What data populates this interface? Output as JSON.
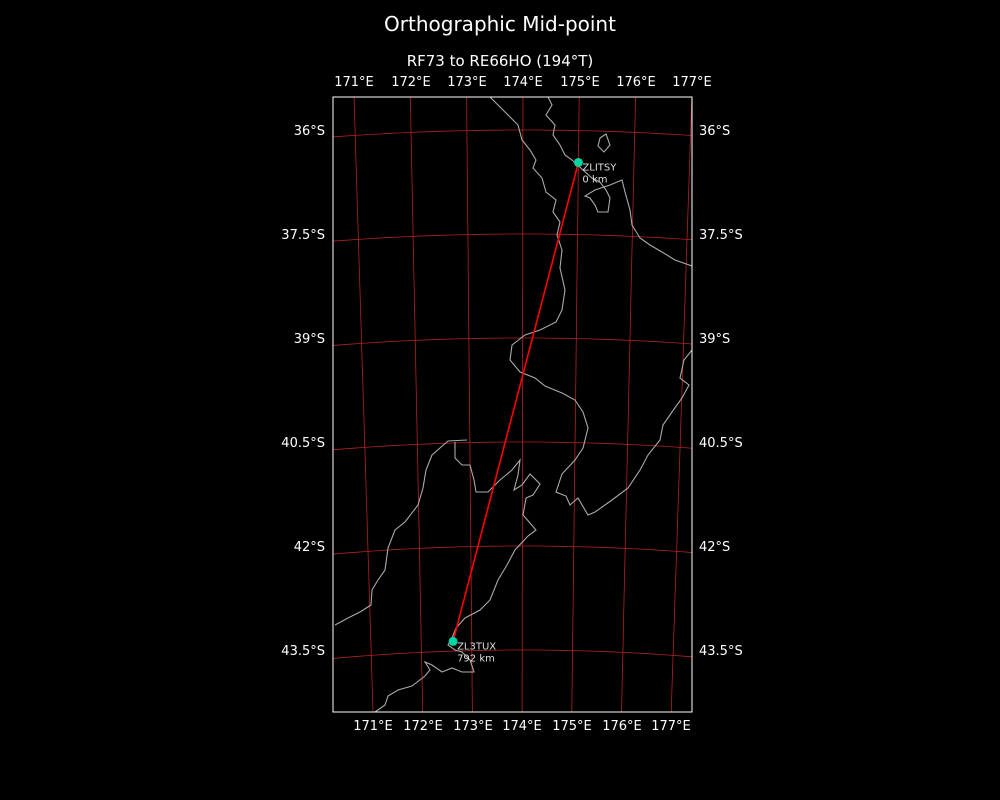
{
  "title": "Orthographic Mid-point",
  "subtitle": "RF73 to RE66HO (194°T)",
  "map": {
    "projection": "orthographic",
    "extent": {
      "lon": [
        170.6,
        177.4
      ],
      "lat": [
        -44.4,
        -35.5
      ]
    },
    "lon_ticks": [
      171,
      172,
      173,
      174,
      175,
      176,
      177
    ],
    "lon_labels": [
      "171°E",
      "172°E",
      "173°E",
      "174°E",
      "175°E",
      "176°E",
      "177°E"
    ],
    "lat_ticks": [
      -36,
      -37.5,
      -39,
      -40.5,
      -42,
      -43.5
    ],
    "lat_labels": [
      "36°S",
      "37.5°S",
      "39°S",
      "40.5°S",
      "42°S",
      "43.5°S"
    ],
    "colors": {
      "background": "#000000",
      "gridlines": "#b22222",
      "coastline": "#aaaaaa",
      "path": "#ff0000",
      "stations": "#00d4a0",
      "frame": "#ffffff"
    },
    "path": {
      "from": "ZLITSY",
      "to": "ZL3TUX"
    },
    "stations": [
      {
        "call": "ZLITSY",
        "distance": "0 km",
        "lat": -36.46,
        "lon": 175.0
      },
      {
        "call": "ZL3TUX",
        "distance": "792 km",
        "lat": -43.36,
        "lon": 172.63
      }
    ]
  }
}
